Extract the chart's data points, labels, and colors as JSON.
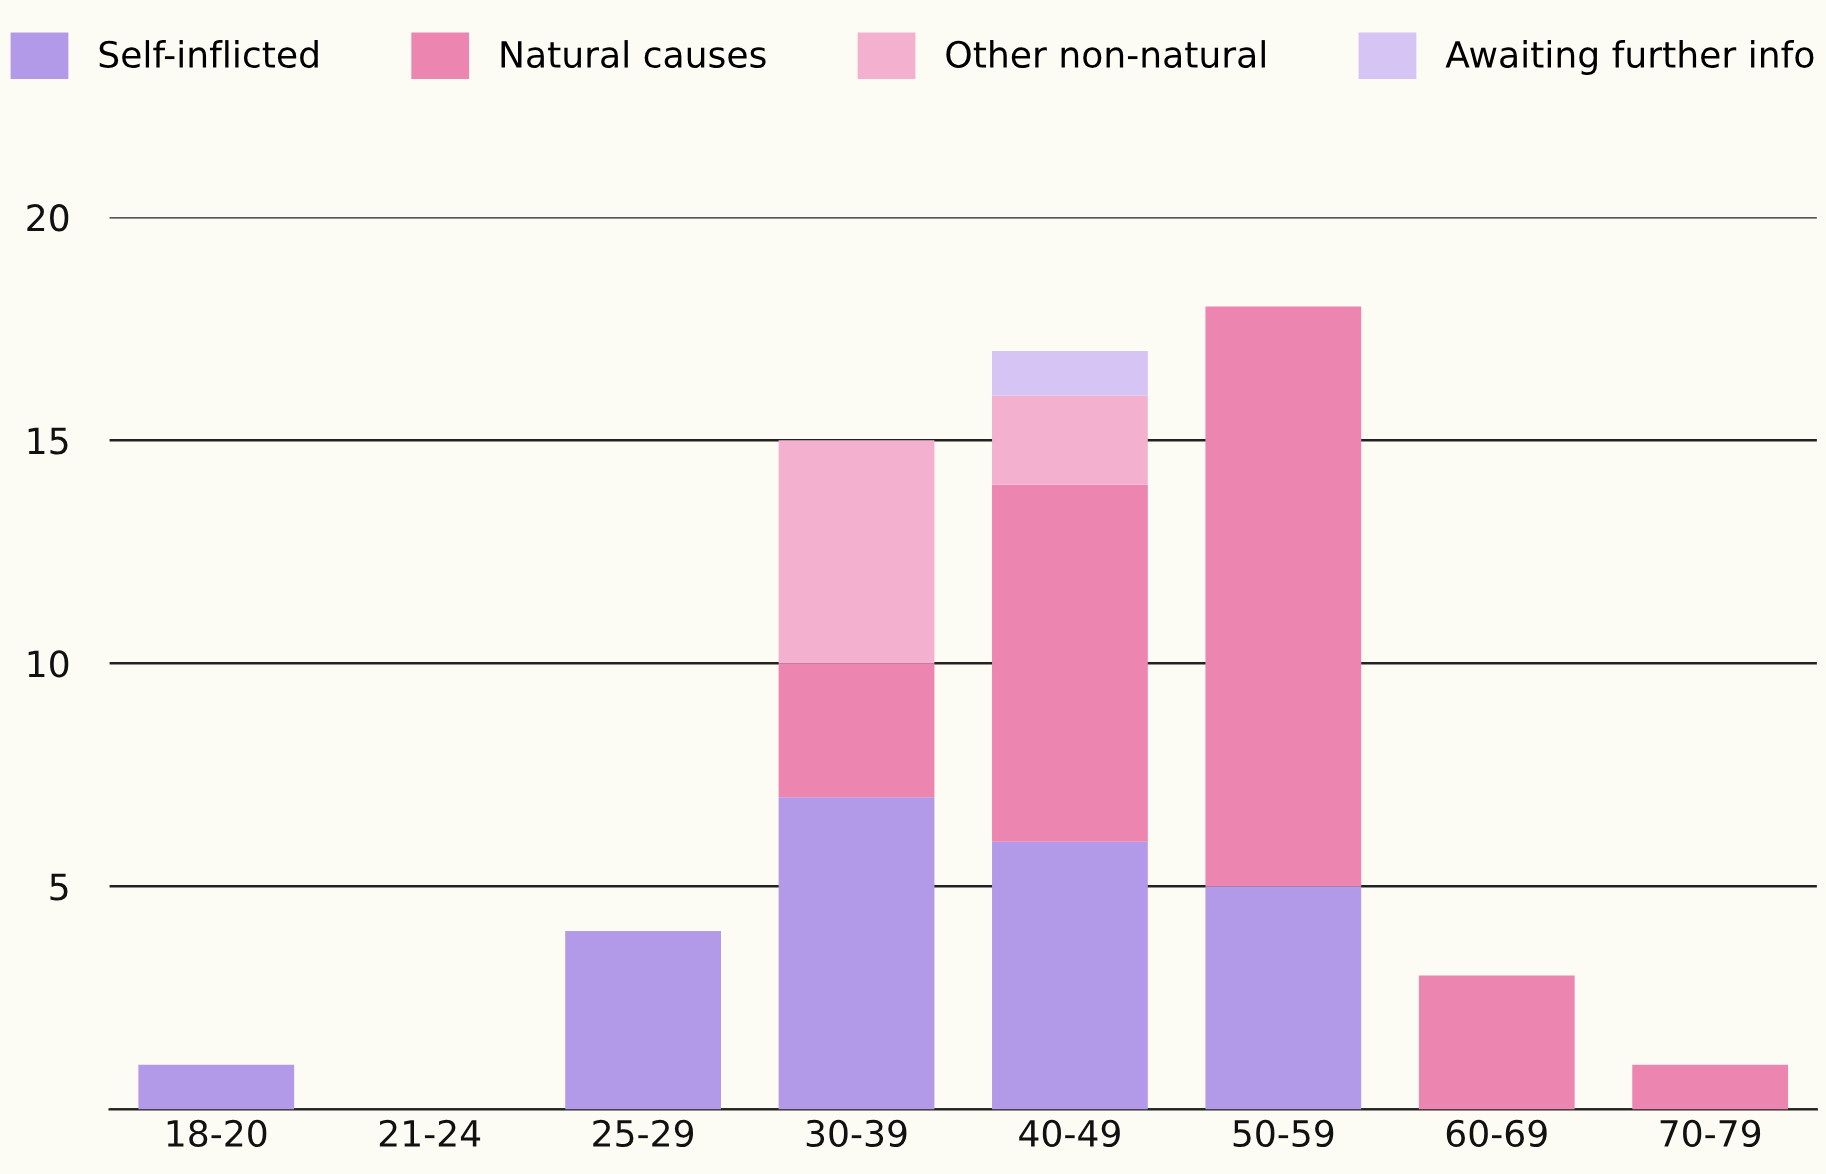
{
  "chart_data": {
    "type": "bar",
    "stacked": true,
    "categories": [
      "18-20",
      "21-24",
      "25-29",
      "30-39",
      "40-49",
      "50-59",
      "60-69",
      "70-79"
    ],
    "series": [
      {
        "name": "Self-inflicted",
        "color": "#b39ae8",
        "values": [
          1,
          0,
          4,
          7,
          6,
          5,
          0,
          0
        ]
      },
      {
        "name": "Natural causes",
        "color": "#ec86b0",
        "values": [
          0,
          0,
          0,
          3,
          8,
          13,
          3,
          1
        ]
      },
      {
        "name": "Other non-natural",
        "color": "#f3b1cf",
        "values": [
          0,
          0,
          0,
          5,
          2,
          0,
          0,
          0
        ]
      },
      {
        "name": "Awaiting further info",
        "color": "#d6c4f4",
        "values": [
          0,
          0,
          0,
          0,
          1,
          0,
          0,
          0
        ]
      }
    ],
    "ylim": [
      0,
      20
    ],
    "yticks": [
      {
        "value": 0,
        "label": null
      },
      5,
      10,
      15,
      20
    ],
    "grid": "y",
    "legend": "top"
  }
}
